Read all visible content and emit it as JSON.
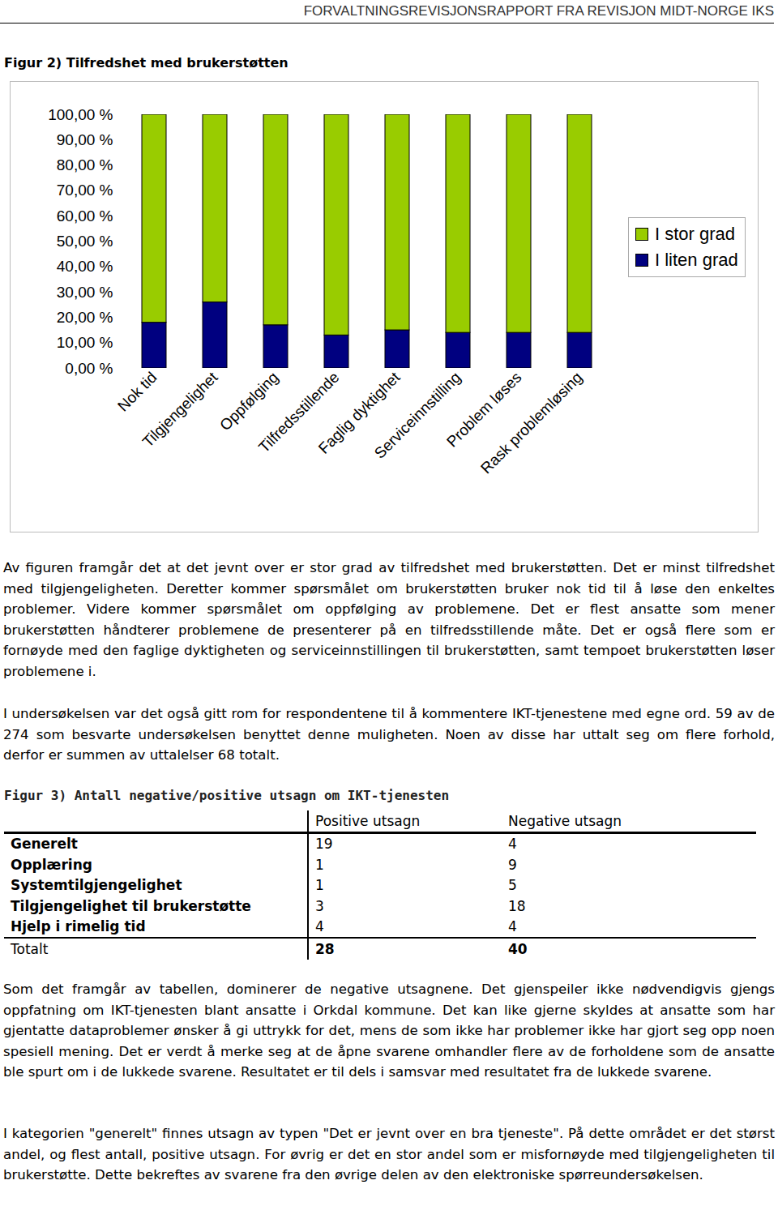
{
  "header": "FORVALTNINGSREVISJONSRAPPORT FRA REVISJON MIDT-NORGE IKS",
  "chart_data": {
    "type": "bar",
    "stacked": true,
    "title": "Figur 2) Tilfredshet med brukerstøtten",
    "categories": [
      "Nok tid",
      "Tilgjengelighet",
      "Oppfølging",
      "Tilfredsstillende",
      "Faglig dyktighet",
      "Serviceinnstilling",
      "Problem løses",
      "Rask problemløsing"
    ],
    "series": [
      {
        "name": "I stor grad",
        "color": "#99cc00",
        "values": [
          82,
          74,
          83,
          87,
          85,
          86,
          86,
          86
        ]
      },
      {
        "name": "I liten grad",
        "color": "#000080",
        "values": [
          18,
          26,
          17,
          13,
          15,
          14,
          14,
          14
        ]
      }
    ],
    "ylim": [
      0,
      100
    ],
    "yticks": [
      {
        "value": 0,
        "label": "0,00 %"
      },
      {
        "value": 10,
        "label": "10,00 %"
      },
      {
        "value": 20,
        "label": "20,00 %"
      },
      {
        "value": 30,
        "label": "30,00 %"
      },
      {
        "value": 40,
        "label": "40,00 %"
      },
      {
        "value": 50,
        "label": "50,00 %"
      },
      {
        "value": 60,
        "label": "60,00 %"
      },
      {
        "value": 70,
        "label": "70,00 %"
      },
      {
        "value": 80,
        "label": "80,00 %"
      },
      {
        "value": 90,
        "label": "90,00 %"
      },
      {
        "value": 100,
        "label": "100,00 %"
      }
    ],
    "legend": "right",
    "grid": false
  },
  "paragraphs_before_table": [
    "Av figuren framgår det at det jevnt over er stor grad av tilfredshet med brukerstøtten. Det er minst tilfredshet med tilgjengeligheten. Deretter kommer spørsmålet om brukerstøtten bruker nok tid til å løse den enkeltes problemer. Videre kommer spørsmålet om oppfølging av problemene. Det er flest ansatte som mener brukerstøtten håndterer problemene de presenterer på en tilfredsstillende måte. Det er også flere som er fornøyde med den faglige dyktigheten og serviceinnstillingen til brukerstøtten, samt tempoet brukerstøtten løser problemene i.",
    "I undersøkelsen var det også gitt rom for respondentene til å kommentere IKT-tjenestene med egne ord. 59 av de 274 som besvarte undersøkelsen benyttet denne muligheten. Noen av disse har uttalt seg om flere forhold, derfor er summen av uttalelser 68 totalt."
  ],
  "table": {
    "title": "Figur 3) Antall negative/positive utsagn om IKT-tjenesten",
    "columns": [
      "Positive utsagn",
      "Negative utsagn"
    ],
    "rows": [
      [
        "Generelt",
        19,
        4
      ],
      [
        "Opplæring",
        1,
        9
      ],
      [
        "Systemtilgjengelighet",
        1,
        5
      ],
      [
        "Tilgjengelighet til brukerstøtte",
        3,
        18
      ],
      [
        "Hjelp i rimelig tid",
        4,
        4
      ]
    ],
    "total": [
      "Totalt",
      28,
      40
    ]
  },
  "paragraphs_after_table": [
    "Som det framgår av tabellen, dominerer de negative utsagnene. Det gjenspeiler ikke nødvendigvis gjengs oppfatning om IKT-tjenesten blant ansatte i Orkdal kommune. Det kan like gjerne skyldes at ansatte som har gjentatte dataproblemer ønsker å gi uttrykk for det, mens de som ikke har problemer ikke har gjort seg opp noen spesiell mening. Det er verdt å merke seg at de åpne svarene omhandler flere av de forholdene som de ansatte ble spurt om i de lukkede svarene. Resultatet er til dels i samsvar med resultatet fra de lukkede svarene.",
    "I kategorien \"generelt\" finnes utsagn av typen \"Det er jevnt over en bra tjeneste\". På dette området er det størst andel, og flest antall, positive utsagn. For øvrig er det en stor andel som er misfornøyde med tilgjengeligheten til brukerstøtte. Dette bekreftes av svarene fra den øvrige delen av den elektroniske spørreundersøkelsen."
  ]
}
